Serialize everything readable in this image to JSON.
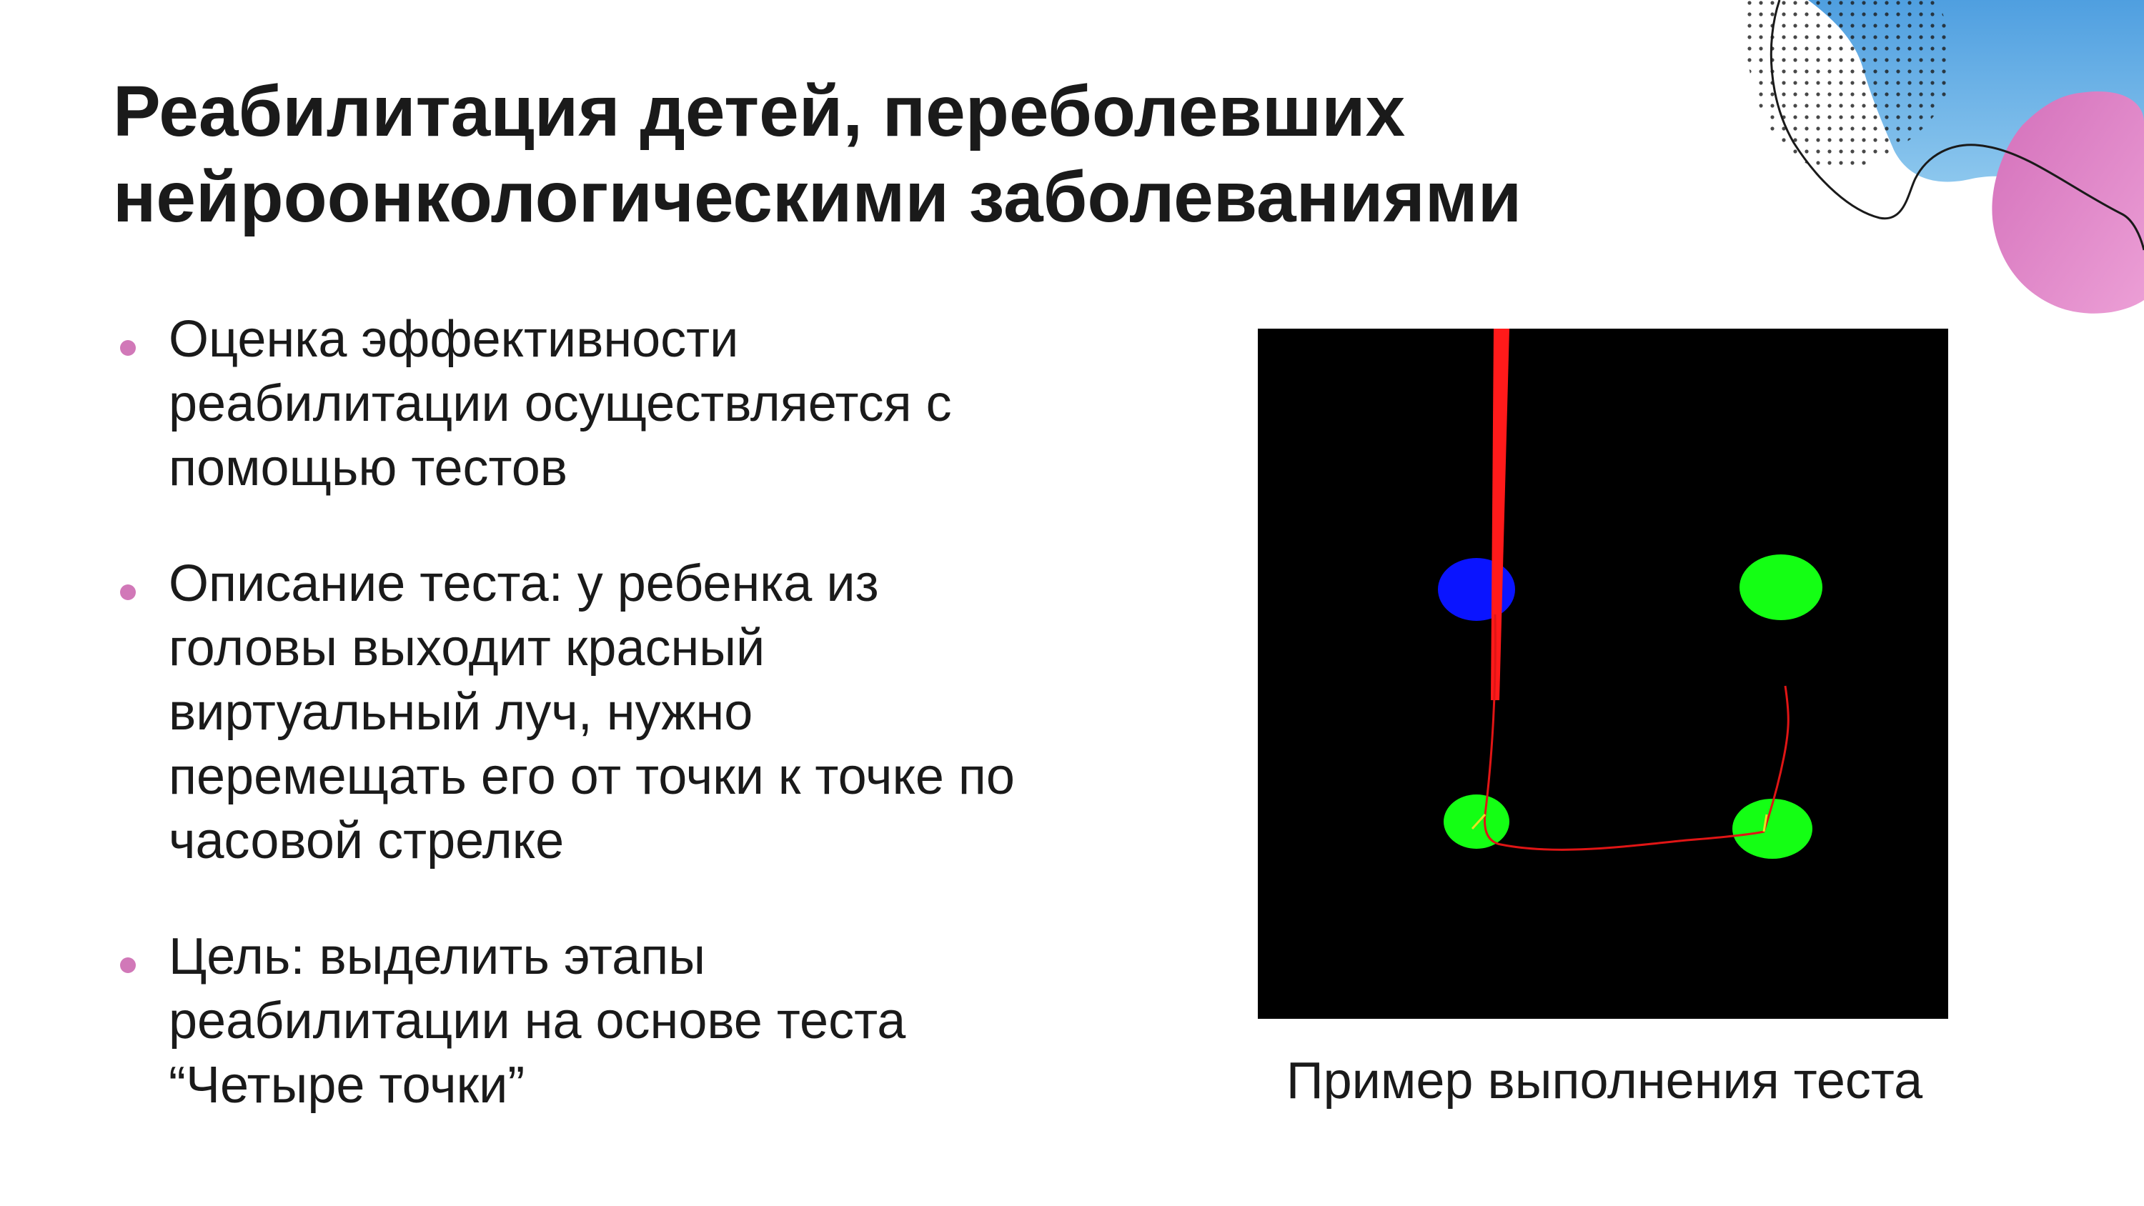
{
  "slide": {
    "title_lines": [
      "Реабилитация детей, переболевших",
      "нейроонкологическими заболеваниями"
    ],
    "bullets": [
      {
        "lines": [
          "Оценка эффективности",
          "реабилитации осуществляется с",
          "помощью тестов"
        ]
      },
      {
        "lines": [
          "Описание теста: у ребенка из",
          "головы выходит красный",
          "виртуальный луч, нужно",
          "перемещать его от точки к точке по",
          "часовой стрелке"
        ]
      },
      {
        "lines": [
          "Цель: выделить этапы",
          "реабилитации на основе теста",
          "“Четыре точки”"
        ]
      }
    ],
    "image_caption": "Пример выполнения теста"
  },
  "colors": {
    "bullet_dot": "#d178b8",
    "background": "#ffffff",
    "text": "#1a1a1a",
    "test_background": "#000000",
    "dot_active": "#0a14ff",
    "dot_target": "#14ff14",
    "laser": "#ff1a1a",
    "deco_blue": "#6ab3e6",
    "deco_pink": "#d77ac1"
  },
  "icons": {
    "bullet": "filled-circle"
  }
}
